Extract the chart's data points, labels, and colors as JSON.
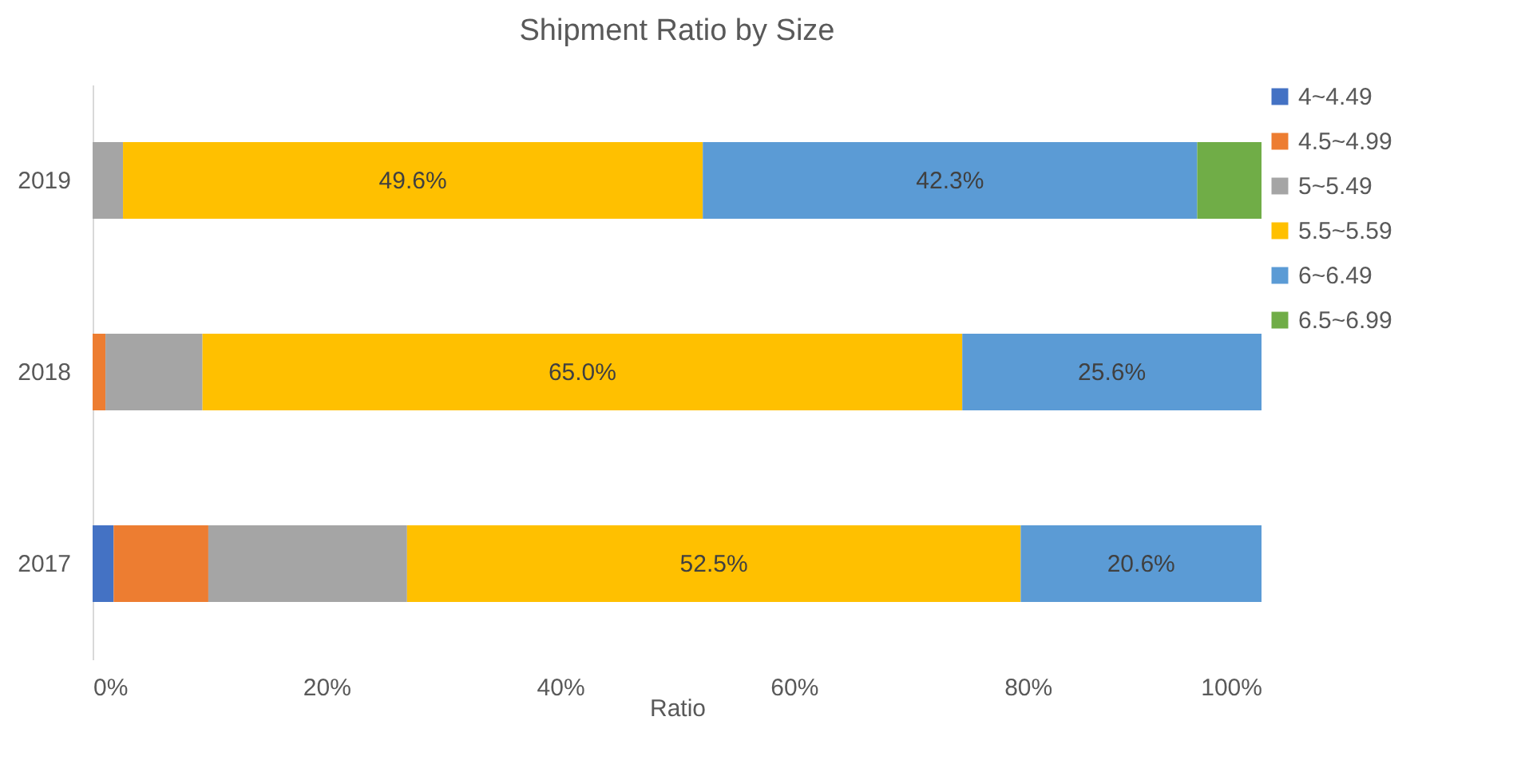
{
  "chart_data": {
    "type": "bar",
    "orientation": "horizontal",
    "stacked": true,
    "title": "Shipment Ratio by Size",
    "xlabel": "Ratio",
    "categories": [
      "2019",
      "2018",
      "2017"
    ],
    "series": [
      {
        "name": "4~4.49",
        "color": "#4472c4",
        "values": [
          null,
          null,
          1.8
        ]
      },
      {
        "name": "4.5~4.99",
        "color": "#ed7d31",
        "values": [
          null,
          1.1,
          8.1
        ]
      },
      {
        "name": "5~5.49",
        "color": "#a5a5a5",
        "values": [
          2.6,
          8.3,
          17.0
        ]
      },
      {
        "name": "5.5~5.59",
        "color": "#ffc000",
        "values": [
          49.6,
          65.0,
          52.5
        ],
        "value_labels": [
          "49.6%",
          "65.0%",
          "52.5%"
        ]
      },
      {
        "name": "6~6.49",
        "color": "#5b9bd5",
        "values": [
          42.3,
          25.6,
          20.6
        ],
        "value_labels": [
          "42.3%",
          "25.6%",
          "20.6%"
        ]
      },
      {
        "name": "6.5~6.99",
        "color": "#70ad47",
        "values": [
          5.5,
          null,
          null
        ]
      }
    ],
    "xlim": [
      0,
      100
    ],
    "xticks": [
      {
        "value": 0,
        "label": "0%"
      },
      {
        "value": 20,
        "label": "20%"
      },
      {
        "value": 40,
        "label": "40%"
      },
      {
        "value": 60,
        "label": "60%"
      },
      {
        "value": 80,
        "label": "80%"
      },
      {
        "value": 100,
        "label": "100%"
      }
    ],
    "legend": "right",
    "grid": false
  }
}
